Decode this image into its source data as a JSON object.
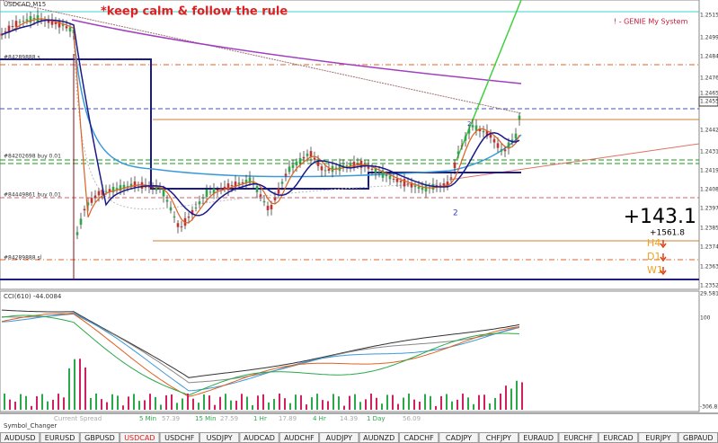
{
  "chart_panel": {
    "symbol": "USDCAD,M15",
    "note": "*keep calm & follow the rule",
    "system": "! - GENIE My System",
    "price_labels": [
      "1.2515",
      "1.24995",
      "1.2484",
      "1.24765",
      "1.2465",
      "1.2455",
      "1.24425",
      "1.2431",
      "1.24195",
      "1.2408",
      "1.23970",
      "1.23855",
      "1.23740",
      "1.23630",
      "1.23520"
    ],
    "orders": [
      "#84289888 s",
      "#84202698 buy 0.01",
      "#84449861 buy 0.01",
      "#84289888 sl"
    ],
    "markers": [
      "2",
      "2"
    ],
    "profit": "+143.1",
    "total": "+1561.8",
    "timeframes": [
      "H4",
      "D1",
      "W1"
    ]
  },
  "indicator_panel": {
    "title": "CCI(610) -44.0084",
    "scale_labels": [
      "29.5816",
      "100",
      "-306.821"
    ]
  },
  "status_row": [
    "Current Spread",
    "5 Min",
    "57.39",
    "15 Min",
    "27.59",
    "1 Hr",
    "17.89",
    "4 Hr",
    "14.39",
    "1 Day",
    "56.09"
  ],
  "symbol_changer": {
    "title": "Symbol_Changer",
    "active_index": 3,
    "buttons": [
      "AUDUSD",
      "EURUSD",
      "GBPUSD",
      "USDCAD",
      "USDCHF",
      "USDJPY",
      "AUDCAD",
      "AUDCHF",
      "AUDJPY",
      "AUDNZD",
      "CADCHF",
      "CADJPY",
      "CHFJPY",
      "EURAUD",
      "EURCHF",
      "EURCAD",
      "EURJPY",
      "GBPAUD"
    ]
  }
}
